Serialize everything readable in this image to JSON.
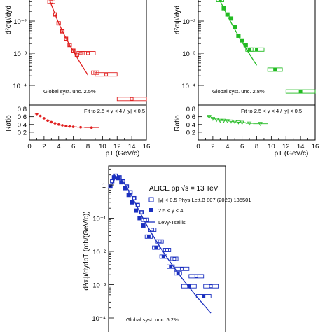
{
  "chart_data": [
    {
      "panel": "top-left",
      "type": "scatter",
      "color": "#e02020",
      "ylabel": "d²σψ/dyd",
      "y_scale": "log",
      "ylim_visible": [
        2e-05,
        0.05
      ],
      "xlim": [
        0,
        16
      ],
      "yticks": [
        "10⁻²",
        "10⁻³",
        "10⁻⁴"
      ],
      "series": [
        {
          "marker": "open-square-with-error-box",
          "x": [
            3.0,
            3.5,
            4.0,
            4.5,
            5.0,
            5.5,
            6.0,
            6.5,
            7.0,
            8.0,
            9.0,
            10.5,
            14.0
          ],
          "xerr": [
            0.5,
            0.25,
            0.25,
            0.25,
            0.25,
            0.25,
            0.25,
            0.25,
            0.5,
            1.0,
            0.5,
            1.5,
            2.0
          ],
          "y": [
            0.04,
            0.016,
            0.0085,
            0.0048,
            0.0028,
            0.0018,
            0.0012,
            0.0009,
            0.001,
            0.001,
            0.00025,
            0.00022,
            3.8e-05
          ]
        }
      ],
      "fit_curve": {
        "x": [
          2.4,
          3.0,
          4.0,
          5.0,
          6.0,
          7.0,
          8.0
        ],
        "y": [
          0.08,
          0.032,
          0.0085,
          0.0029,
          0.00115,
          0.00048,
          0.00021
        ]
      },
      "annotation": "Global syst. unc. 2.5%",
      "ratio": {
        "ylabel": "Ratio",
        "ylim": [
          0,
          0.9
        ],
        "yticks": [
          "0.2",
          "0.4",
          "0.6",
          "0.8"
        ],
        "legend": "Fit to 2.5 < y < 4 / |y| < 0.5",
        "x": [
          1.0,
          1.5,
          2.0,
          2.5,
          3.0,
          3.5,
          4.0,
          4.5,
          5.0,
          5.5,
          6.0,
          7.0,
          8.5
        ],
        "y": [
          0.67,
          0.62,
          0.56,
          0.5,
          0.46,
          0.43,
          0.4,
          0.38,
          0.36,
          0.35,
          0.34,
          0.33,
          0.32
        ],
        "xerr": [
          0.25,
          0.25,
          0.25,
          0.25,
          0.25,
          0.25,
          0.25,
          0.25,
          0.25,
          0.25,
          0.5,
          0.5,
          1.0
        ]
      },
      "xlabel": "pT (GeV/c)",
      "xticks": [
        "0",
        "2",
        "4",
        "6",
        "8",
        "10",
        "12",
        "14",
        "16"
      ]
    },
    {
      "panel": "top-right",
      "type": "scatter",
      "color": "#22bb22",
      "ylabel": "d²σψ/dyd",
      "y_scale": "log",
      "ylim_visible": [
        2e-05,
        0.05
      ],
      "xlim": [
        0,
        16
      ],
      "yticks": [
        "10⁻²",
        "10⁻³",
        "10⁻⁴"
      ],
      "series": [
        {
          "marker": "open-square-with-error-box",
          "x": [
            3.0,
            3.5,
            4.0,
            4.5,
            5.0,
            5.5,
            6.0,
            6.5,
            7.0,
            8.0,
            10.5,
            14.0
          ],
          "xerr": [
            0.5,
            0.25,
            0.25,
            0.25,
            0.25,
            0.25,
            0.25,
            0.25,
            0.5,
            1.0,
            1.0,
            2.0
          ],
          "y": [
            0.045,
            0.025,
            0.016,
            0.012,
            0.0065,
            0.0035,
            0.0025,
            0.0018,
            0.0013,
            0.0013,
            0.00031,
            6.5e-05
          ]
        }
      ],
      "fit_curve": {
        "x": [
          2.4,
          3.0,
          4.0,
          5.0,
          6.0,
          7.0,
          8.0
        ],
        "y": [
          0.09,
          0.042,
          0.0145,
          0.0055,
          0.0022,
          0.00095,
          0.00042
        ]
      },
      "annotation": "Global syst. unc. 2.8%",
      "ratio": {
        "ylabel": "Ratio",
        "ylim": [
          0,
          0.9
        ],
        "yticks": [
          "0.2",
          "0.4",
          "0.6",
          "0.8"
        ],
        "legend": "Fit to 2.5 < y < 4 / |y| < 0.5",
        "x": [
          1.5,
          2.0,
          2.5,
          3.0,
          3.5,
          4.0,
          4.5,
          5.0,
          5.5,
          6.0,
          7.0,
          8.5
        ],
        "y": [
          0.6,
          0.55,
          0.52,
          0.5,
          0.5,
          0.49,
          0.48,
          0.47,
          0.46,
          0.45,
          0.43,
          0.42
        ],
        "xerr": [
          0.25,
          0.25,
          0.25,
          0.25,
          0.25,
          0.25,
          0.25,
          0.25,
          0.25,
          0.5,
          0.5,
          1.0
        ]
      },
      "xlabel": "pT (GeV/c)",
      "xticks": [
        "0",
        "2",
        "4",
        "6",
        "8",
        "10",
        "12",
        "14",
        "16"
      ]
    },
    {
      "panel": "bottom",
      "type": "scatter",
      "color": "#1a2fbf",
      "ylabel": "d²σψ/dydpT (mb/(GeV/c))",
      "y_scale": "log",
      "ylim_visible": [
        2e-05,
        3
      ],
      "xlim": [
        0,
        16
      ],
      "yticks": [
        "1",
        "10⁻¹",
        "10⁻²",
        "10⁻³",
        "10⁻⁴"
      ],
      "title": "ALICE pp √s = 13 TeV",
      "series": [
        {
          "name": "|y| < 0.5 Phys.Lett.B 807 (2020) 135501",
          "marker": "open-square",
          "x": [
            0.5,
            1.0,
            1.5,
            2.0,
            2.5,
            3.0,
            3.5,
            4.0,
            4.5,
            5.0,
            6.0,
            7.0,
            8.0,
            9.0,
            10.0,
            12.0,
            14.0
          ],
          "xerr": [
            0.25,
            0.25,
            0.25,
            0.25,
            0.25,
            0.25,
            0.25,
            0.25,
            0.25,
            0.5,
            0.5,
            0.5,
            0.5,
            0.5,
            1.0,
            1.0,
            1.0
          ],
          "y": [
            1.3,
            1.9,
            1.7,
            1.3,
            0.9,
            0.6,
            0.4,
            0.25,
            0.15,
            0.09,
            0.045,
            0.02,
            0.011,
            0.006,
            0.003,
            0.0018,
            0.0009
          ]
        },
        {
          "name": "2.5 < y < 4",
          "marker": "filled-square",
          "x": [
            0.25,
            0.75,
            1.25,
            1.75,
            2.25,
            2.75,
            3.25,
            3.75,
            4.25,
            4.75,
            5.5,
            6.5,
            7.5,
            8.5,
            9.5,
            11.0,
            13.0
          ],
          "xerr": [
            0.25,
            0.25,
            0.25,
            0.25,
            0.25,
            0.25,
            0.25,
            0.25,
            0.25,
            0.25,
            0.5,
            0.5,
            0.5,
            0.5,
            0.5,
            1.0,
            1.0
          ],
          "y": [
            0.9,
            1.7,
            1.6,
            1.2,
            0.8,
            0.5,
            0.3,
            0.17,
            0.1,
            0.06,
            0.028,
            0.013,
            0.007,
            0.0035,
            0.0022,
            0.0009,
            0.00045
          ]
        },
        {
          "name": "Levy-Tsallis",
          "marker": "line",
          "x": [
            0.5,
            1.0,
            1.5,
            2.0,
            3.0,
            4.0,
            5.0,
            6.0,
            7.0,
            8.0,
            10.0,
            12.0,
            14.0
          ],
          "y": [
            1.1,
            1.7,
            1.6,
            1.25,
            0.55,
            0.2,
            0.075,
            0.032,
            0.014,
            0.0065,
            0.0016,
            0.00045,
            0.00014
          ]
        }
      ],
      "annotation": "Global syst. unc. 5.2%"
    }
  ]
}
